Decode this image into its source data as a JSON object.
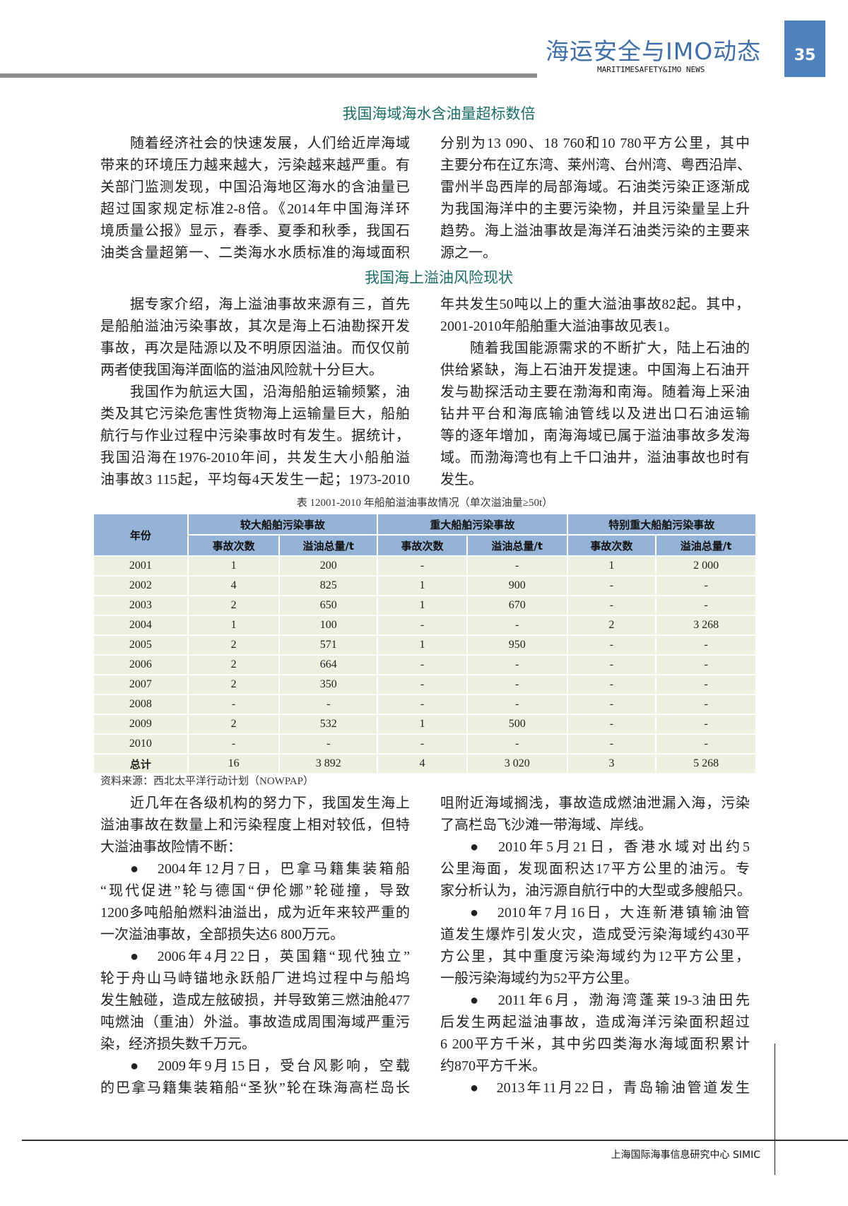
{
  "header": {
    "title": "海运安全与IMO动态",
    "subtitle": "MARITIMESAFETY&IMO NEWS",
    "page_number": "35",
    "accent": "#4f81bd"
  },
  "section1": {
    "title": "我国海域海水含油量超标数倍",
    "left": [
      "随着经济社会的快速发展，人们给近岸海域",
      "带来的环境压力越来越大，污染越来越严重。有",
      "关部门监测发现，中国沿海地区海水的含油量已",
      "超过国家规定标准2-8倍。《2014年中国海洋环",
      "境质量公报》显示，春季、夏季和秋季，我国石",
      "油类含量超第一、二类海水水质标准的海域面积"
    ],
    "right": [
      "分别为13 090、18 760和10 780平方公里，其中",
      "主要分布在辽东湾、莱州湾、台州湾、粤西沿岸、",
      "雷州半岛西岸的局部海域。石油类污染正逐渐成",
      "为我国海洋中的主要污染物，并且污染量呈上升",
      "趋势。海上溢油事故是海洋石油类污染的主要来",
      "源之一。"
    ]
  },
  "section2": {
    "title": "我国海上溢油风险现状",
    "left": [
      "据专家介绍，海上溢油事故来源有三，首先",
      "是船舶溢油污染事故，其次是海上石油勘探开发",
      "事故，再次是陆源以及不明原因溢油。而仅仅前",
      "两者使我国海洋面临的溢油风险就十分巨大。",
      "我国作为航运大国，沿海船舶运输频繁，油",
      "类及其它污染危害性货物海上运输量巨大，船舶",
      "航行与作业过程中污染事故时有发生。据统计，",
      "我国沿海在1976-2010年间，共发生大小船舶溢",
      "油事故3 115起，平均每4天发生一起；1973-2010"
    ],
    "right": [
      "年共发生50吨以上的重大溢油事故82起。其中，",
      "2001-2010年船舶重大溢油事故见表1。",
      "随着我国能源需求的不断扩大，陆上石油的",
      "供给紧缺，海上石油开发提速。中国海上石油开",
      "发与勘探活动主要在渤海和南海。随着海上采油",
      "钻井平台和海底输油管线以及进出口石油运输",
      "等的逐年增加，南海海域已属于溢油事故多发海",
      "域。而渤海湾也有上千口油井，溢油事故也时有",
      "发生。"
    ]
  },
  "table": {
    "caption": "表 12001-2010 年船舶溢油事故情况（单次溢油量≥50t）",
    "year_header": "年份",
    "groups": [
      "较大船舶污染事故",
      "重大船舶污染事故",
      "特别重大船舶污染事故"
    ],
    "subheaders": [
      "事故次数",
      "溢油总量/t",
      "事故次数",
      "溢油总量/t",
      "事故次数",
      "溢油总量/t"
    ],
    "rows": [
      [
        "2001",
        "1",
        "200",
        "-",
        "-",
        "1",
        "2 000"
      ],
      [
        "2002",
        "4",
        "825",
        "1",
        "900",
        "-",
        "-"
      ],
      [
        "2003",
        "2",
        "650",
        "1",
        "670",
        "-",
        "-"
      ],
      [
        "2004",
        "1",
        "100",
        "-",
        "-",
        "2",
        "3 268"
      ],
      [
        "2005",
        "2",
        "571",
        "1",
        "950",
        "-",
        "-"
      ],
      [
        "2006",
        "2",
        "664",
        "-",
        "-",
        "-",
        "-"
      ],
      [
        "2007",
        "2",
        "350",
        "-",
        "-",
        "-",
        "-"
      ],
      [
        "2008",
        "-",
        "-",
        "-",
        "-",
        "-",
        "-"
      ],
      [
        "2009",
        "2",
        "532",
        "1",
        "500",
        "-",
        "-"
      ],
      [
        "2010",
        "-",
        "-",
        "-",
        "-",
        "-",
        "-"
      ],
      [
        "总计",
        "16",
        "3 892",
        "4",
        "3 020",
        "3",
        "5 268"
      ]
    ],
    "source": "资料来源：西北太平洋行动计划（NOWPAP）",
    "header_color": "#95b3d7",
    "row_color": "#ebf1de"
  },
  "section3": {
    "left": [
      "近几年在各级机构的努力下，我国发生海上",
      "溢油事故在数量上和污染程度上相对较低，但特",
      "大溢油事故险情不断：",
      "●　2004年12月7日，巴拿马籍集装箱船",
      "“现代促进”轮与德国“伊伦娜”轮碰撞，导致",
      "1200多吨船舶燃料油溢出，成为近年来较严重的",
      "一次溢油事故，全部损失达6 800万元。",
      "●　2006年4月22日，英国籍“现代独立”",
      "轮于舟山马峙锚地永跃船厂进坞过程中与船坞",
      "发生触碰，造成左舷破损，并导致第三燃油舱477",
      "吨燃油（重油）外溢。事故造成周围海域严重污",
      "染，经济损失数千万元。",
      "●　2009年9月15日，受台风影响，空载",
      "的巴拿马籍集装箱船“圣狄”轮在珠海高栏岛长"
    ],
    "right": [
      "咀附近海域搁浅，事故造成燃油泄漏入海，污染",
      "了高栏岛飞沙滩一带海域、岸线。",
      "●　2010年5月21日，香港水域对出约5",
      "公里海面，发现面积达17平方公里的油污。专",
      "家分析认为，油污源自航行中的大型或多艘船只。",
      "●　2010年7月16日，大连新港镇输油管",
      "道发生爆炸引发火灾，造成受污染海域约430平",
      "方公里，其中重度污染海域约为12平方公里，",
      "一般污染海域约为52平方公里。",
      "●　2011年6月，渤海湾蓬莱19-3油田先",
      "后发生两起溢油事故，造成海洋污染面积超过",
      "6 200平方千米，其中劣四类海水海域面积累计",
      "约870平方千米。",
      "●　2013年11月22日，青岛输油管道发生"
    ]
  },
  "footer": {
    "text": "上海国际海事信息研究中心 SIMIC"
  }
}
